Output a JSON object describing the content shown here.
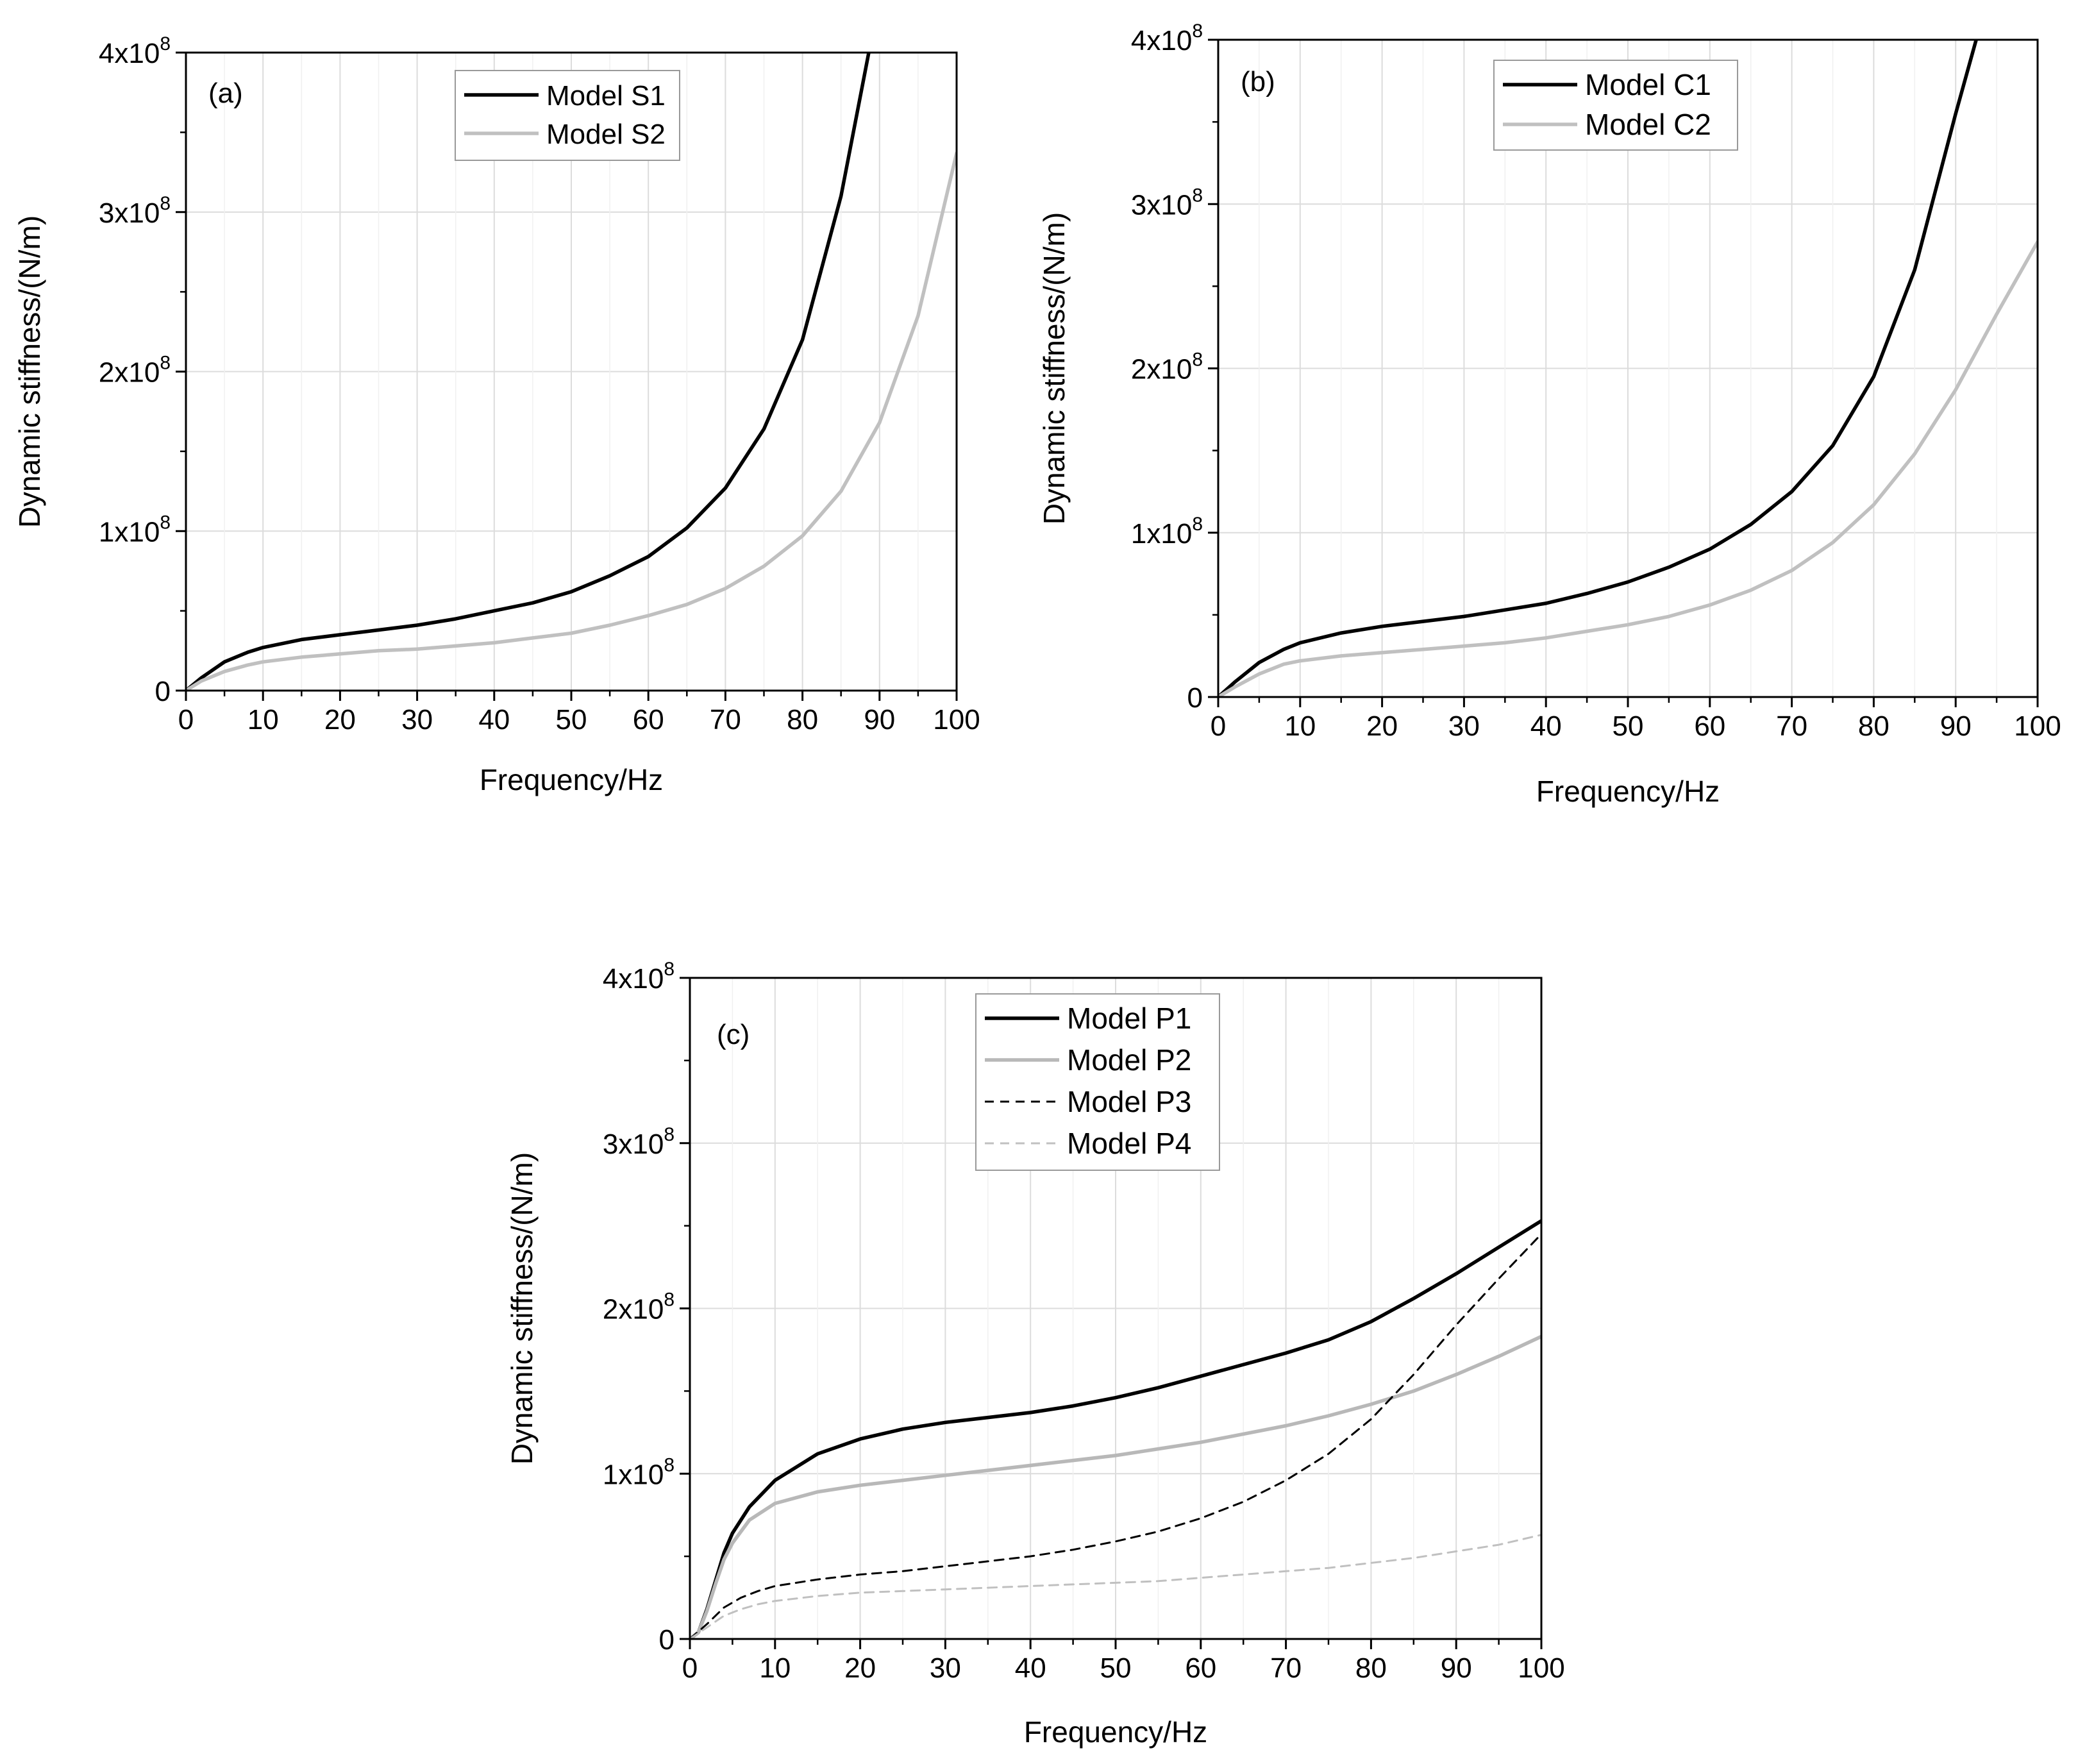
{
  "chart_data": [
    {
      "type": "line",
      "panel_label": "(a)",
      "xlabel": "Frequency/Hz",
      "ylabel": "Dynamic stiffness/(N/m)",
      "xlim": [
        0,
        100
      ],
      "ylim": [
        0,
        400000000
      ],
      "x_ticks": [
        0,
        10,
        20,
        30,
        40,
        50,
        60,
        70,
        80,
        90,
        100
      ],
      "y_ticks": [
        {
          "value": 0,
          "base": "0",
          "exp": ""
        },
        {
          "value": 100000000,
          "base": "1x10",
          "exp": "8"
        },
        {
          "value": 200000000,
          "base": "2x10",
          "exp": "8"
        },
        {
          "value": 300000000,
          "base": "3x10",
          "exp": "8"
        },
        {
          "value": 400000000,
          "base": "4x10",
          "exp": "8"
        }
      ],
      "grid": true,
      "legend_position": "top-center",
      "series": [
        {
          "name": "Model S1",
          "color": "#000000",
          "dash": "solid",
          "x": [
            0,
            2,
            5,
            8,
            10,
            15,
            20,
            25,
            30,
            35,
            40,
            45,
            50,
            55,
            60,
            65,
            70,
            75,
            80,
            85,
            88,
            88.6
          ],
          "y": [
            0,
            8000000,
            18000000,
            24000000,
            27000000,
            32000000,
            35000000,
            38000000,
            41000000,
            45000000,
            50000000,
            55000000,
            62000000,
            72000000,
            84000000,
            102000000,
            127000000,
            164000000,
            220000000,
            310000000,
            385000000,
            400000000
          ]
        },
        {
          "name": "Model S2",
          "color": "#c0c0c0",
          "dash": "solid",
          "x": [
            0,
            2,
            5,
            8,
            10,
            15,
            20,
            25,
            30,
            35,
            40,
            45,
            50,
            55,
            60,
            65,
            70,
            75,
            80,
            85,
            90,
            95,
            100
          ],
          "y": [
            0,
            6000000,
            12000000,
            16000000,
            18000000,
            21000000,
            23000000,
            25000000,
            26000000,
            28000000,
            30000000,
            33000000,
            36000000,
            41000000,
            47000000,
            54000000,
            64000000,
            78000000,
            97000000,
            125000000,
            168000000,
            235000000,
            337000000
          ]
        }
      ]
    },
    {
      "type": "line",
      "panel_label": "(b)",
      "xlabel": "Frequency/Hz",
      "ylabel": "Dynamic stiffness/(N/m)",
      "xlim": [
        0,
        100
      ],
      "ylim": [
        0,
        400000000
      ],
      "x_ticks": [
        0,
        10,
        20,
        30,
        40,
        50,
        60,
        70,
        80,
        90,
        100
      ],
      "y_ticks": [
        {
          "value": 0,
          "base": "0",
          "exp": ""
        },
        {
          "value": 100000000,
          "base": "1x10",
          "exp": "8"
        },
        {
          "value": 200000000,
          "base": "2x10",
          "exp": "8"
        },
        {
          "value": 300000000,
          "base": "3x10",
          "exp": "8"
        },
        {
          "value": 400000000,
          "base": "4x10",
          "exp": "8"
        }
      ],
      "grid": true,
      "legend_position": "top-center",
      "series": [
        {
          "name": "Model C1",
          "color": "#000000",
          "dash": "solid",
          "x": [
            0,
            2,
            5,
            8,
            10,
            15,
            20,
            25,
            30,
            35,
            40,
            45,
            50,
            55,
            60,
            65,
            70,
            75,
            80,
            85,
            90,
            92.5
          ],
          "y": [
            0,
            9000000,
            21000000,
            29000000,
            33000000,
            39000000,
            43000000,
            46000000,
            49000000,
            53000000,
            57000000,
            63000000,
            70000000,
            79000000,
            90000000,
            105000000,
            125000000,
            153000000,
            195000000,
            260000000,
            355000000,
            400000000
          ]
        },
        {
          "name": "Model C2",
          "color": "#c0c0c0",
          "dash": "solid",
          "x": [
            0,
            2,
            5,
            8,
            10,
            15,
            20,
            25,
            30,
            35,
            40,
            45,
            50,
            55,
            60,
            65,
            70,
            75,
            80,
            85,
            90,
            95,
            100
          ],
          "y": [
            0,
            6000000,
            14000000,
            20000000,
            22000000,
            25000000,
            27000000,
            29000000,
            31000000,
            33000000,
            36000000,
            40000000,
            44000000,
            49000000,
            56000000,
            65000000,
            77000000,
            94000000,
            117000000,
            148000000,
            187000000,
            233000000,
            277000000
          ]
        }
      ]
    },
    {
      "type": "line",
      "panel_label": "(c)",
      "xlabel": "Frequency/Hz",
      "ylabel": "Dynamic stiffness/(N/m)",
      "xlim": [
        0,
        100
      ],
      "ylim": [
        0,
        400000000
      ],
      "x_ticks": [
        0,
        10,
        20,
        30,
        40,
        50,
        60,
        70,
        80,
        90,
        100
      ],
      "y_ticks": [
        {
          "value": 0,
          "base": "0",
          "exp": ""
        },
        {
          "value": 100000000,
          "base": "1x10",
          "exp": "8"
        },
        {
          "value": 200000000,
          "base": "2x10",
          "exp": "8"
        },
        {
          "value": 300000000,
          "base": "3x10",
          "exp": "8"
        },
        {
          "value": 400000000,
          "base": "4x10",
          "exp": "8"
        }
      ],
      "grid": true,
      "legend_position": "top-center",
      "series": [
        {
          "name": "Model P1",
          "color": "#000000",
          "dash": "solid",
          "x": [
            0,
            1,
            2,
            3,
            4,
            5,
            7,
            10,
            15,
            20,
            25,
            30,
            35,
            40,
            45,
            50,
            55,
            60,
            65,
            70,
            75,
            80,
            85,
            90,
            95,
            100
          ],
          "y": [
            0,
            4000000,
            18000000,
            35000000,
            52000000,
            64000000,
            80000000,
            96000000,
            112000000,
            121000000,
            127000000,
            131000000,
            134000000,
            137000000,
            141000000,
            146000000,
            152000000,
            159000000,
            166000000,
            173000000,
            181000000,
            192000000,
            206000000,
            221000000,
            237000000,
            253000000
          ]
        },
        {
          "name": "Model P2",
          "color": "#b8b8b8",
          "dash": "solid",
          "x": [
            0,
            1,
            2,
            3,
            4,
            5,
            7,
            10,
            15,
            20,
            25,
            30,
            35,
            40,
            45,
            50,
            55,
            60,
            65,
            70,
            75,
            80,
            85,
            90,
            95,
            100
          ],
          "y": [
            0,
            4000000,
            17000000,
            33000000,
            48000000,
            58000000,
            72000000,
            82000000,
            89000000,
            93000000,
            96000000,
            99000000,
            102000000,
            105000000,
            108000000,
            111000000,
            115000000,
            119000000,
            124000000,
            129000000,
            135000000,
            142000000,
            150000000,
            160000000,
            171000000,
            183000000
          ]
        },
        {
          "name": "Model P3",
          "color": "#000000",
          "dash": "dashed",
          "x": [
            0,
            2,
            4,
            6,
            8,
            10,
            15,
            20,
            25,
            30,
            35,
            40,
            45,
            50,
            55,
            60,
            65,
            70,
            75,
            80,
            85,
            90,
            95,
            100
          ],
          "y": [
            0,
            9000000,
            19000000,
            25000000,
            29000000,
            32000000,
            36000000,
            39000000,
            41000000,
            44000000,
            47000000,
            50000000,
            54000000,
            59000000,
            65000000,
            73000000,
            83000000,
            96000000,
            112000000,
            133000000,
            160000000,
            190000000,
            218000000,
            245000000
          ]
        },
        {
          "name": "Model P4",
          "color": "#c0c0c0",
          "dash": "dashed",
          "x": [
            0,
            2,
            4,
            6,
            8,
            10,
            15,
            20,
            25,
            30,
            35,
            40,
            45,
            50,
            55,
            60,
            65,
            70,
            75,
            80,
            85,
            90,
            95,
            100
          ],
          "y": [
            0,
            7000000,
            14000000,
            18000000,
            21000000,
            23000000,
            26000000,
            28000000,
            29000000,
            30000000,
            31000000,
            32000000,
            33000000,
            34000000,
            35000000,
            37000000,
            39000000,
            41000000,
            43000000,
            46000000,
            49000000,
            53000000,
            57000000,
            63000000
          ]
        }
      ]
    }
  ]
}
